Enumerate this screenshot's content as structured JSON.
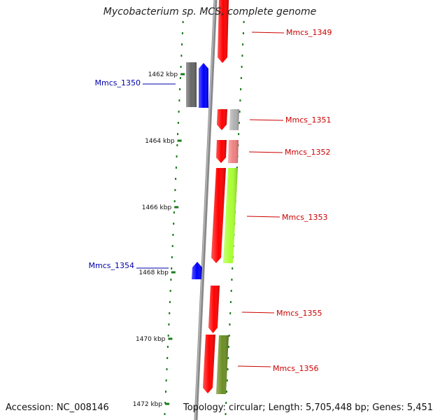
{
  "title": "Mycobacterium sp. MCS, complete genome",
  "footer": {
    "accession": "Accession: NC_008146",
    "topology": "Topology: circular; Length: 5,705,448 bp; Genes: 5,451"
  },
  "colors": {
    "backbone": "#888888",
    "tick": "#1a7a1a",
    "forward_label": "#cc0000",
    "reverse_label": "#0000aa"
  },
  "scale_ticks": [
    {
      "label": "1462 kbp"
    },
    {
      "label": "1464 kbp"
    },
    {
      "label": "1466 kbp"
    },
    {
      "label": "1468 kbp"
    },
    {
      "label": "1470 kbp"
    },
    {
      "label": "1472 kbp"
    }
  ],
  "gene_labels": [
    {
      "name": "Mmcs_1349",
      "strand": "forward"
    },
    {
      "name": "Mmcs_1350",
      "strand": "reverse"
    },
    {
      "name": "Mmcs_1351",
      "strand": "forward"
    },
    {
      "name": "Mmcs_1352",
      "strand": "forward"
    },
    {
      "name": "Mmcs_1353",
      "strand": "forward"
    },
    {
      "name": "Mmcs_1354",
      "strand": "reverse"
    },
    {
      "name": "Mmcs_1355",
      "strand": "forward"
    },
    {
      "name": "Mmcs_1356",
      "strand": "forward"
    }
  ],
  "features": [
    {
      "gene": "Mmcs_1349",
      "color": "#ff0000",
      "direction": "down"
    },
    {
      "gene": "Mmcs_1350",
      "color": "#0000ff",
      "direction": "up"
    },
    {
      "gene": "Mmcs_1350",
      "color": "#666666",
      "direction": "none"
    },
    {
      "gene": "Mmcs_1351",
      "color": "#ff0000",
      "direction": "down"
    },
    {
      "gene": "Mmcs_1351",
      "color": "#b0b0b0",
      "direction": "none"
    },
    {
      "gene": "Mmcs_1352",
      "color": "#ff0000",
      "direction": "down"
    },
    {
      "gene": "Mmcs_1352",
      "color": "#f08080",
      "direction": "none"
    },
    {
      "gene": "Mmcs_1353",
      "color": "#ff0000",
      "direction": "down"
    },
    {
      "gene": "Mmcs_1353",
      "color": "#aaff33",
      "direction": "none"
    },
    {
      "gene": "Mmcs_1354",
      "color": "#0000ff",
      "direction": "up"
    },
    {
      "gene": "Mmcs_1355",
      "color": "#ff0000",
      "direction": "down"
    },
    {
      "gene": "Mmcs_1356",
      "color": "#ff0000",
      "direction": "down"
    },
    {
      "gene": "Mmcs_1356",
      "color": "#6b8e23",
      "direction": "none"
    }
  ]
}
